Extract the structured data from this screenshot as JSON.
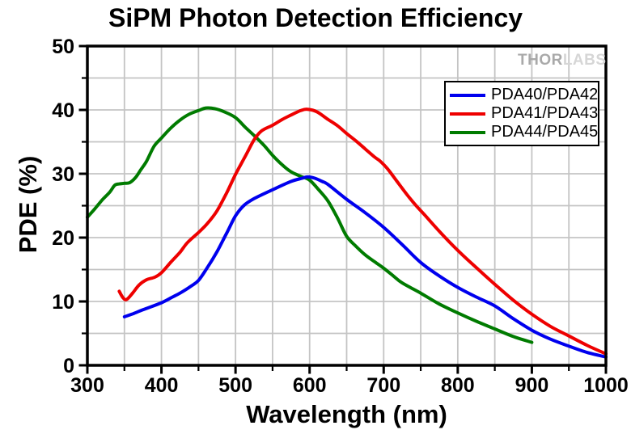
{
  "title": "SiPM Photon Detection Efficiency",
  "watermark": {
    "bold": "THOR",
    "light": "LABS"
  },
  "legend": {
    "position": "top-right"
  },
  "chart_data": {
    "type": "line",
    "title": "SiPM Photon Detection Efficiency",
    "xlabel": "Wavelength (nm)",
    "ylabel": "PDE (%)",
    "xlim": [
      300,
      1000
    ],
    "ylim": [
      0,
      50
    ],
    "x_major_ticks": [
      300,
      400,
      500,
      600,
      700,
      800,
      900,
      1000
    ],
    "x_minor_step": 50,
    "y_major_ticks": [
      0,
      10,
      20,
      30,
      40,
      50
    ],
    "y_minor_step": 5,
    "grid": "both minor and major, light gray",
    "grid_color": "#c4c4c4",
    "frame_color": "#000000",
    "legend_position": "top-right inside",
    "series": [
      {
        "name": "PDA40/PDA42",
        "color": "#0000ee",
        "points": [
          [
            350,
            7.6
          ],
          [
            360,
            8.0
          ],
          [
            375,
            8.7
          ],
          [
            400,
            9.8
          ],
          [
            415,
            10.7
          ],
          [
            425,
            11.3
          ],
          [
            440,
            12.4
          ],
          [
            450,
            13.3
          ],
          [
            462,
            15.3
          ],
          [
            475,
            17.8
          ],
          [
            488,
            20.7
          ],
          [
            500,
            23.4
          ],
          [
            511,
            25.0
          ],
          [
            525,
            26.1
          ],
          [
            550,
            27.5
          ],
          [
            575,
            28.8
          ],
          [
            590,
            29.3
          ],
          [
            597,
            29.5
          ],
          [
            607,
            29.3
          ],
          [
            617,
            28.8
          ],
          [
            625,
            28.3
          ],
          [
            650,
            26.0
          ],
          [
            675,
            23.9
          ],
          [
            700,
            21.6
          ],
          [
            725,
            18.9
          ],
          [
            750,
            16.1
          ],
          [
            775,
            14.0
          ],
          [
            800,
            12.2
          ],
          [
            825,
            10.7
          ],
          [
            850,
            9.3
          ],
          [
            875,
            7.3
          ],
          [
            900,
            5.5
          ],
          [
            925,
            4.1
          ],
          [
            950,
            3.0
          ],
          [
            975,
            2.0
          ],
          [
            1000,
            1.3
          ]
        ]
      },
      {
        "name": "PDA41/PDA43",
        "color": "#ee0000",
        "points": [
          [
            343,
            11.6
          ],
          [
            348,
            10.6
          ],
          [
            353,
            10.3
          ],
          [
            361,
            11.3
          ],
          [
            370,
            12.6
          ],
          [
            380,
            13.4
          ],
          [
            391,
            13.8
          ],
          [
            400,
            14.5
          ],
          [
            413,
            16.2
          ],
          [
            425,
            17.7
          ],
          [
            435,
            19.2
          ],
          [
            450,
            20.8
          ],
          [
            462,
            22.2
          ],
          [
            475,
            24.2
          ],
          [
            488,
            27.0
          ],
          [
            500,
            29.9
          ],
          [
            513,
            32.7
          ],
          [
            525,
            35.3
          ],
          [
            535,
            36.7
          ],
          [
            550,
            37.6
          ],
          [
            563,
            38.5
          ],
          [
            575,
            39.2
          ],
          [
            588,
            39.9
          ],
          [
            597,
            40.1
          ],
          [
            610,
            39.7
          ],
          [
            625,
            38.5
          ],
          [
            638,
            37.5
          ],
          [
            650,
            36.3
          ],
          [
            663,
            35.1
          ],
          [
            675,
            33.9
          ],
          [
            688,
            32.6
          ],
          [
            695,
            32.0
          ],
          [
            705,
            30.8
          ],
          [
            718,
            28.8
          ],
          [
            731,
            26.8
          ],
          [
            743,
            25.1
          ],
          [
            755,
            23.6
          ],
          [
            775,
            21.0
          ],
          [
            800,
            18.0
          ],
          [
            825,
            15.3
          ],
          [
            850,
            12.7
          ],
          [
            875,
            10.2
          ],
          [
            900,
            8.0
          ],
          [
            925,
            6.1
          ],
          [
            950,
            4.6
          ],
          [
            975,
            3.1
          ],
          [
            1000,
            1.8
          ]
        ]
      },
      {
        "name": "PDA44/PDA45",
        "color": "#007b00",
        "points": [
          [
            300,
            23.2
          ],
          [
            310,
            24.5
          ],
          [
            320,
            25.9
          ],
          [
            330,
            27.1
          ],
          [
            337,
            28.2
          ],
          [
            343,
            28.4
          ],
          [
            350,
            28.5
          ],
          [
            357,
            28.6
          ],
          [
            365,
            29.4
          ],
          [
            372,
            30.6
          ],
          [
            380,
            32.0
          ],
          [
            390,
            34.3
          ],
          [
            400,
            35.6
          ],
          [
            412,
            37.1
          ],
          [
            425,
            38.4
          ],
          [
            437,
            39.3
          ],
          [
            450,
            39.9
          ],
          [
            460,
            40.3
          ],
          [
            472,
            40.2
          ],
          [
            485,
            39.7
          ],
          [
            500,
            38.8
          ],
          [
            513,
            37.3
          ],
          [
            525,
            36.0
          ],
          [
            538,
            34.5
          ],
          [
            550,
            32.9
          ],
          [
            563,
            31.4
          ],
          [
            575,
            30.3
          ],
          [
            588,
            29.6
          ],
          [
            600,
            29.0
          ],
          [
            613,
            27.4
          ],
          [
            625,
            25.7
          ],
          [
            638,
            23.0
          ],
          [
            650,
            20.2
          ],
          [
            663,
            18.6
          ],
          [
            675,
            17.3
          ],
          [
            688,
            16.2
          ],
          [
            700,
            15.2
          ],
          [
            713,
            14.0
          ],
          [
            725,
            12.9
          ],
          [
            750,
            11.3
          ],
          [
            775,
            9.6
          ],
          [
            800,
            8.2
          ],
          [
            825,
            6.9
          ],
          [
            850,
            5.7
          ],
          [
            875,
            4.5
          ],
          [
            900,
            3.6
          ]
        ]
      }
    ]
  }
}
